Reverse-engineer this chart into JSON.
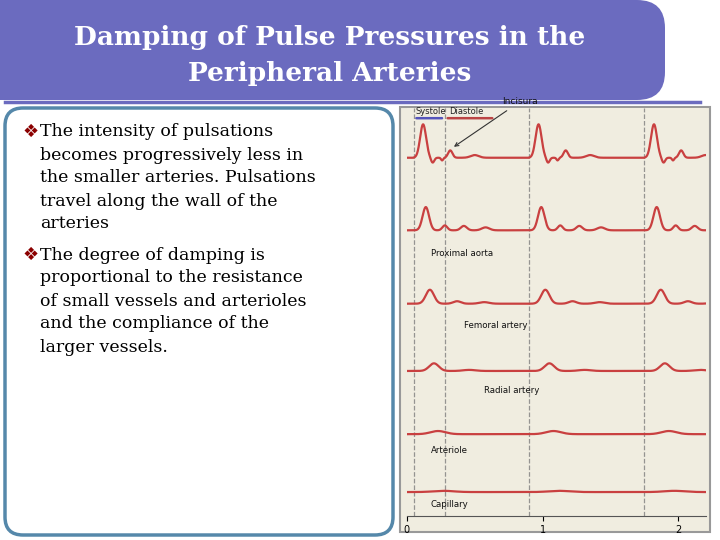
{
  "title_line1": "Damping of Pulse Pressures in the",
  "title_line2": "Peripheral Arteries",
  "title_bg_color": "#6B6BBF",
  "title_text_color": "#ffffff",
  "slide_bg_color": "#ffffff",
  "content_bg_color": "#ffffff",
  "border_color": "#5588aa",
  "bullet_color": "#8B0000",
  "text_color": "#000000",
  "bullet1_line1": "The intensity of pulsations",
  "bullet1_line2": "becomes progressively less in",
  "bullet1_line3": "the smaller arteries. Pulsations",
  "bullet1_line4": "travel along the wall of the",
  "bullet1_line5": "arteries",
  "bullet2_line1": "The degree of damping is",
  "bullet2_line2": "proportional to the resistance",
  "bullet2_line3": "of small vessels and arterioles",
  "bullet2_line4": "and the compliance of the",
  "bullet2_line5": "larger vessels.",
  "image_bg": "#f0ede0",
  "image_border": "#999999",
  "curve_color": "#c94040",
  "dashed_line_color": "#777777",
  "systole_bar_color": "#5555bb",
  "diastole_bar_color": "#bb4444"
}
